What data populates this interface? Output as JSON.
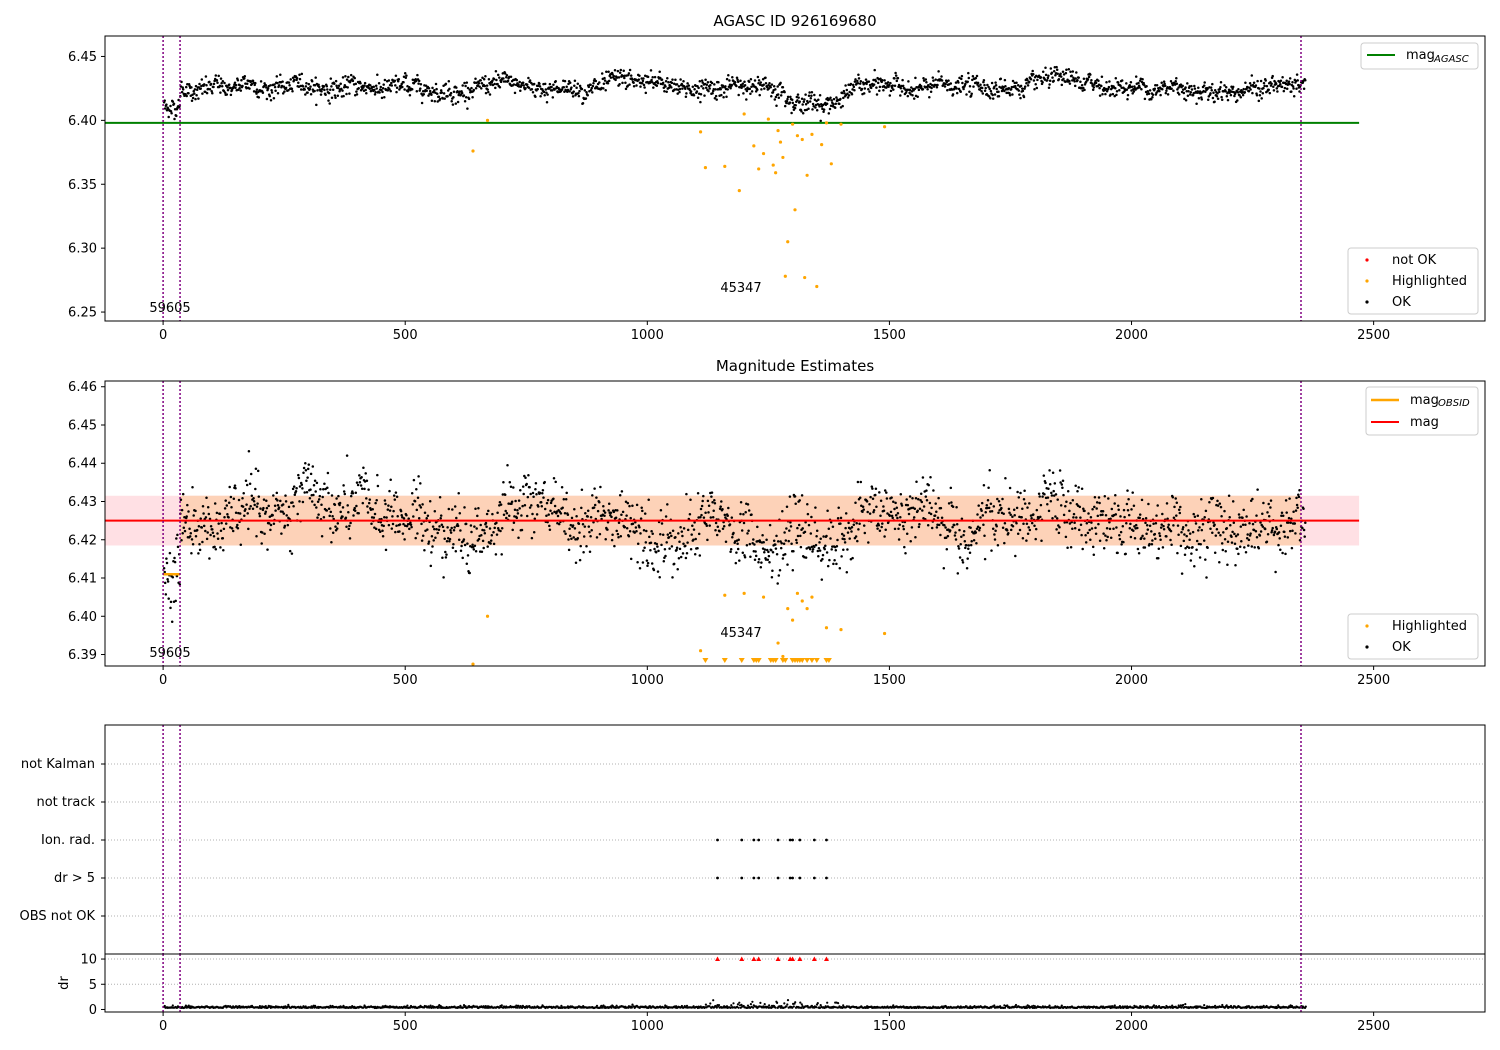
{
  "chart_data": [
    {
      "type": "scatter",
      "title": "AGASC ID 926169680",
      "xlim": [
        -120,
        2730
      ],
      "ylim": [
        6.243,
        6.466
      ],
      "xticks": [
        0,
        500,
        1000,
        1500,
        2000,
        2500
      ],
      "yticks": [
        6.25,
        6.3,
        6.35,
        6.4,
        6.45
      ],
      "ytick_labels": [
        "6.25",
        "6.30",
        "6.35",
        "6.40",
        "6.45"
      ],
      "vlines": [
        0,
        35,
        2350
      ],
      "hline": {
        "name": "mag_AGASC",
        "y": 6.398,
        "x_range": [
          -120,
          2470
        ],
        "color": "#008000"
      },
      "legend_line": [
        {
          "label": "mag",
          "sub": "AGASC",
          "color": "#008000"
        }
      ],
      "legend_points": [
        {
          "label": "not OK",
          "color": "#ff0000"
        },
        {
          "label": "Highlighted",
          "color": "#ffa500"
        },
        {
          "label": "OK",
          "color": "#000000"
        }
      ],
      "annotations": [
        {
          "text": "59605",
          "x": 15,
          "y": 6.251
        },
        {
          "text": "45347",
          "x": 1190,
          "y": 6.266
        }
      ],
      "ok_series": {
        "x_range": [
          0,
          2360
        ],
        "mean": 6.426,
        "spread": 0.006,
        "dip": {
          "x_range": [
            1280,
            1440
          ],
          "value": 6.415
        },
        "start_level": 6.411
      },
      "highlighted": {
        "x": [
          640,
          670,
          1110,
          1120,
          1160,
          1190,
          1200,
          1220,
          1230,
          1240,
          1250,
          1260,
          1265,
          1270,
          1275,
          1280,
          1285,
          1290,
          1300,
          1305,
          1310,
          1320,
          1325,
          1330,
          1340,
          1350,
          1360,
          1370,
          1380,
          1400,
          1490
        ],
        "y": [
          6.376,
          6.4,
          6.391,
          6.363,
          6.364,
          6.345,
          6.405,
          6.38,
          6.362,
          6.374,
          6.401,
          6.365,
          6.359,
          6.392,
          6.383,
          6.371,
          6.278,
          6.305,
          6.397,
          6.33,
          6.388,
          6.385,
          6.277,
          6.357,
          6.389,
          6.27,
          6.381,
          6.398,
          6.366,
          6.397,
          6.395
        ]
      }
    },
    {
      "type": "scatter",
      "title": "Magnitude Estimates",
      "xlim": [
        -120,
        2730
      ],
      "ylim": [
        6.387,
        6.4615
      ],
      "xticks": [
        0,
        500,
        1000,
        1500,
        2000,
        2500
      ],
      "yticks": [
        6.39,
        6.4,
        6.41,
        6.42,
        6.43,
        6.44,
        6.45,
        6.46
      ],
      "ytick_labels": [
        "6.39",
        "6.40",
        "6.41",
        "6.42",
        "6.43",
        "6.44",
        "6.45",
        "6.46"
      ],
      "vlines": [
        0,
        35,
        2350
      ],
      "hline": {
        "name": "mag",
        "y": 6.425,
        "x_range": [
          -120,
          2470
        ],
        "color": "#ff0000"
      },
      "band_outer": {
        "y_range": [
          6.4185,
          6.4315
        ],
        "x_range": [
          -120,
          2470
        ],
        "color": "#ffe0e4"
      },
      "band_inner": {
        "y_range": [
          6.4185,
          6.4315
        ],
        "x_range": [
          35,
          2350
        ],
        "color": "#fdd2b8"
      },
      "obsid_line": {
        "name": "mag_OBSID",
        "y": 6.411,
        "x_range": [
          0,
          35
        ],
        "color": "#ffa500"
      },
      "legend_line": [
        {
          "label": "mag",
          "sub": "OBSID",
          "color": "#ffa500"
        },
        {
          "label": "mag",
          "sub": "",
          "color": "#ff0000"
        }
      ],
      "legend_points": [
        {
          "label": "Highlighted",
          "color": "#ffa500"
        },
        {
          "label": "OK",
          "color": "#000000"
        }
      ],
      "annotations": [
        {
          "text": "59605",
          "x": 15,
          "y": 6.3895
        },
        {
          "text": "45347",
          "x": 1190,
          "y": 6.3955
        }
      ],
      "ok_series": {
        "x_range": [
          0,
          2360
        ],
        "mean": 6.425,
        "spread": 0.0065,
        "dip": {
          "x_range": [
            1140,
            1440
          ],
          "value": 6.417
        },
        "start_level": 6.41
      },
      "highlighted": {
        "x": [
          640,
          670,
          1110,
          1160,
          1200,
          1240,
          1270,
          1280,
          1290,
          1300,
          1310,
          1320,
          1330,
          1340,
          1370,
          1400,
          1490
        ],
        "y": [
          6.3875,
          6.4,
          6.391,
          6.4055,
          6.406,
          6.405,
          6.393,
          6.3895,
          6.402,
          6.399,
          6.406,
          6.404,
          6.402,
          6.405,
          6.397,
          6.3965,
          6.3955
        ]
      },
      "clipped_markers_x": [
        1120,
        1160,
        1195,
        1220,
        1225,
        1230,
        1255,
        1260,
        1265,
        1280,
        1285,
        1300,
        1305,
        1310,
        1315,
        1320,
        1330,
        1340,
        1350,
        1370,
        1375
      ]
    },
    {
      "type": "scatter",
      "title": "",
      "categories": [
        "not Kalman",
        "not track",
        "Ion. rad.",
        "dr > 5",
        "OBS not OK"
      ],
      "xlim": [
        -120,
        2730
      ],
      "vlines": [
        0,
        35,
        2350
      ],
      "flag_points": {
        "Ion. rad.": [
          1145,
          1195,
          1220,
          1230,
          1270,
          1295,
          1300,
          1315,
          1345,
          1370
        ],
        "dr > 5": [
          1145,
          1195,
          1220,
          1230,
          1270,
          1295,
          1300,
          1315,
          1345,
          1370
        ]
      }
    },
    {
      "type": "scatter",
      "title": "",
      "ylabel": "dr",
      "xlim": [
        -120,
        2730
      ],
      "ylim": [
        -0.5,
        11
      ],
      "xticks": [
        0,
        500,
        1000,
        1500,
        2000,
        2500
      ],
      "yticks": [
        0,
        5,
        10
      ],
      "ytick_labels": [
        "0",
        "5",
        "10"
      ],
      "vlines": [
        0,
        35,
        2350
      ],
      "clipped_markers_x": [
        1145,
        1195,
        1220,
        1230,
        1270,
        1295,
        1300,
        1315,
        1345,
        1370
      ],
      "ok_series": {
        "x_range": [
          0,
          2360
        ],
        "mean": 0.3,
        "spread": 0.2
      }
    }
  ]
}
